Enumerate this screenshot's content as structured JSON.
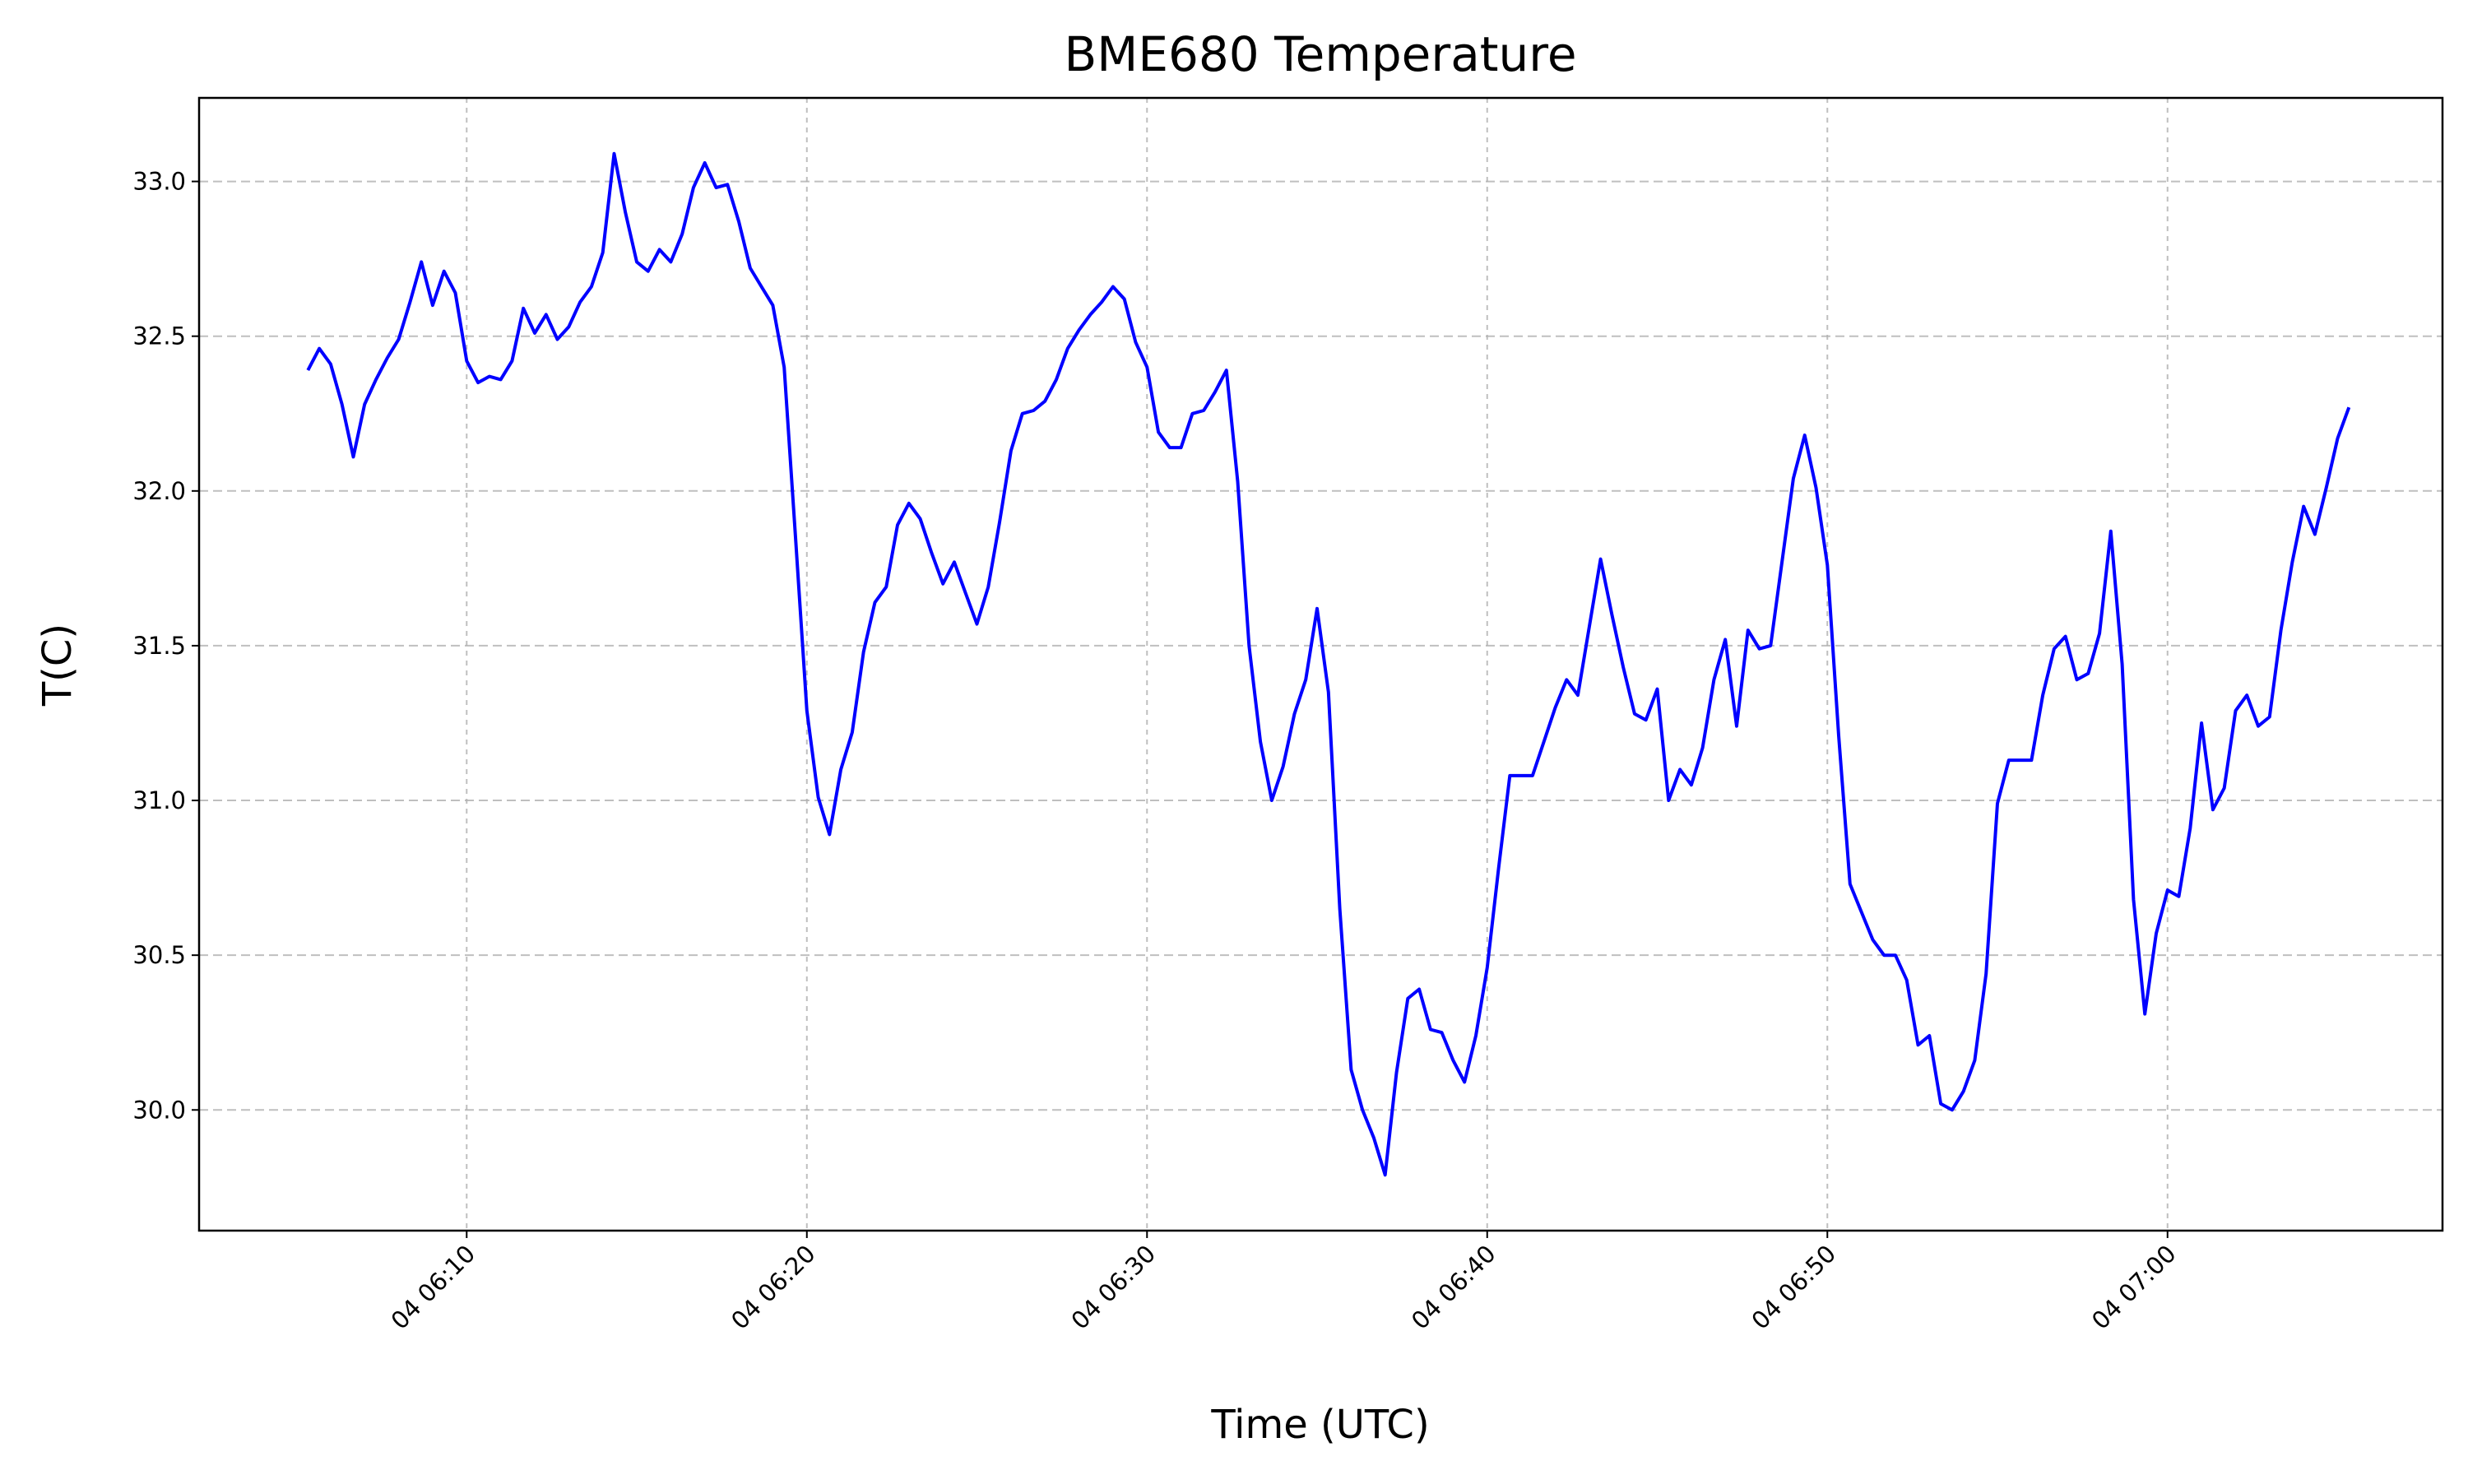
{
  "chart_data": {
    "type": "line",
    "title": "BME680 Temperature",
    "xlabel": "Time (UTC)",
    "ylabel": "T(C)",
    "x_tick_labels": [
      "04 06:10",
      "04 06:20",
      "04 06:30",
      "04 06:40",
      "04 06:50",
      "04 07:00"
    ],
    "x_ticks": [
      "06:10:00",
      "06:20:00",
      "06:30:00",
      "06:40:00",
      "06:50:00",
      "07:00:00"
    ],
    "y_ticks": [
      30.0,
      30.5,
      31.0,
      31.5,
      32.0,
      32.5,
      33.0
    ],
    "y_tick_labels": [
      "30.0",
      "30.5",
      "31.0",
      "31.5",
      "32.0",
      "32.5",
      "33.0"
    ],
    "xlim": [
      "06:02:08",
      "07:08:05"
    ],
    "ylim": [
      29.61,
      33.27
    ],
    "grid": true,
    "grid_style": "dashed",
    "legend": "none",
    "line_color": "#0000ff",
    "series": [
      {
        "x": [
          "06:05:20",
          "06:05:40",
          "06:06:00",
          "06:06:20",
          "06:06:40",
          "06:07:00",
          "06:07:20",
          "06:07:40",
          "06:08:00",
          "06:08:20",
          "06:08:40",
          "06:09:00",
          "06:09:20",
          "06:09:40",
          "06:10:00",
          "06:10:20",
          "06:10:40",
          "06:11:00",
          "06:11:20",
          "06:11:40",
          "06:12:00",
          "06:12:20",
          "06:12:40",
          "06:13:00",
          "06:13:20",
          "06:13:40",
          "06:14:00",
          "06:14:20",
          "06:14:40",
          "06:15:00",
          "06:15:20",
          "06:15:40",
          "06:16:00",
          "06:16:20",
          "06:16:40",
          "06:17:00",
          "06:17:20",
          "06:17:40",
          "06:18:00",
          "06:18:20",
          "06:18:40",
          "06:19:00",
          "06:19:20",
          "06:19:40",
          "06:20:00",
          "06:20:20",
          "06:20:40",
          "06:21:00",
          "06:21:20",
          "06:21:40",
          "06:22:00",
          "06:22:20",
          "06:22:40",
          "06:23:00",
          "06:23:20",
          "06:23:40",
          "06:24:00",
          "06:24:20",
          "06:24:40",
          "06:25:00",
          "06:25:20",
          "06:25:40",
          "06:26:00",
          "06:26:20",
          "06:26:40",
          "06:27:00",
          "06:27:20",
          "06:27:40",
          "06:28:00",
          "06:28:20",
          "06:28:40",
          "06:29:00",
          "06:29:20",
          "06:29:40",
          "06:30:00",
          "06:30:20",
          "06:30:40",
          "06:31:00",
          "06:31:20",
          "06:31:40",
          "06:32:00",
          "06:32:20",
          "06:32:40",
          "06:33:00",
          "06:33:20",
          "06:33:40",
          "06:34:00",
          "06:34:20",
          "06:34:40",
          "06:35:00",
          "06:35:20",
          "06:35:40",
          "06:36:00",
          "06:36:20",
          "06:36:40",
          "06:37:00",
          "06:37:20",
          "06:37:40",
          "06:38:00",
          "06:38:20",
          "06:38:40",
          "06:39:00",
          "06:39:20",
          "06:39:40",
          "06:40:00",
          "06:40:20",
          "06:40:40",
          "06:41:00",
          "06:41:20",
          "06:41:40",
          "06:42:00",
          "06:42:20",
          "06:42:40",
          "06:43:00",
          "06:43:20",
          "06:43:40",
          "06:44:00",
          "06:44:20",
          "06:44:40",
          "06:45:00",
          "06:45:20",
          "06:45:40",
          "06:46:00",
          "06:46:20",
          "06:46:40",
          "06:47:00",
          "06:47:20",
          "06:47:40",
          "06:48:00",
          "06:48:20",
          "06:48:40",
          "06:49:00",
          "06:49:20",
          "06:49:40",
          "06:50:00",
          "06:50:20",
          "06:50:40",
          "06:51:00",
          "06:51:20",
          "06:51:40",
          "06:52:00",
          "06:52:20",
          "06:52:40",
          "06:53:00",
          "06:53:20",
          "06:53:40",
          "06:54:00",
          "06:54:20",
          "06:54:40",
          "06:55:00",
          "06:55:20",
          "06:55:40",
          "06:56:00",
          "06:56:20",
          "06:56:40",
          "06:57:00",
          "06:57:20",
          "06:57:40",
          "06:58:00",
          "06:58:20",
          "06:58:40",
          "06:59:00",
          "06:59:20",
          "06:59:40",
          "07:00:00",
          "07:00:20",
          "07:00:40",
          "07:01:00",
          "07:01:20",
          "07:01:40",
          "07:02:00",
          "07:02:20",
          "07:02:40",
          "07:03:00",
          "07:03:20",
          "07:03:40",
          "07:04:00",
          "07:04:20",
          "07:04:40",
          "07:05:00",
          "07:05:20"
        ],
        "y": [
          32.39,
          32.46,
          32.41,
          32.28,
          32.11,
          32.28,
          32.36,
          32.43,
          32.49,
          32.61,
          32.74,
          32.6,
          32.71,
          32.64,
          32.42,
          32.35,
          32.37,
          32.36,
          32.42,
          32.59,
          32.51,
          32.57,
          32.49,
          32.53,
          32.61,
          32.66,
          32.77,
          33.09,
          32.9,
          32.74,
          32.71,
          32.78,
          32.74,
          32.83,
          32.98,
          33.06,
          32.98,
          32.99,
          32.87,
          32.72,
          32.66,
          32.6,
          32.4,
          31.85,
          31.29,
          31.01,
          30.89,
          31.1,
          31.22,
          31.48,
          31.64,
          31.69,
          31.89,
          31.96,
          31.91,
          31.8,
          31.7,
          31.77,
          31.67,
          31.57,
          31.69,
          31.9,
          32.13,
          32.25,
          32.26,
          32.29,
          32.36,
          32.46,
          32.52,
          32.57,
          32.61,
          32.66,
          32.62,
          32.48,
          32.4,
          32.19,
          32.14,
          32.14,
          32.25,
          32.26,
          32.32,
          32.39,
          32.03,
          31.5,
          31.19,
          31.0,
          31.11,
          31.28,
          31.39,
          31.62,
          31.35,
          30.65,
          30.13,
          30.0,
          29.91,
          29.79,
          30.12,
          30.36,
          30.39,
          30.26,
          30.25,
          30.16,
          30.09,
          30.24,
          30.46,
          30.78,
          31.08,
          31.08,
          31.08,
          31.19,
          31.3,
          31.39,
          31.34,
          31.56,
          31.78,
          31.6,
          31.43,
          31.28,
          31.26,
          31.36,
          31.0,
          31.1,
          31.05,
          31.17,
          31.39,
          31.52,
          31.24,
          31.55,
          31.49,
          31.5,
          31.77,
          32.04,
          32.18,
          32.01,
          31.76,
          31.21,
          30.73,
          30.64,
          30.55,
          30.5,
          30.5,
          30.42,
          30.21,
          30.24,
          30.02,
          30.0,
          30.06,
          30.16,
          30.44,
          30.99,
          31.13,
          31.13,
          31.13,
          31.34,
          31.49,
          31.53,
          31.39,
          31.41,
          31.54,
          31.87,
          31.44,
          30.68,
          30.31,
          30.57,
          30.71,
          30.69,
          30.91,
          31.25,
          30.97,
          31.04,
          31.29,
          31.34,
          31.24,
          31.27,
          31.55,
          31.77,
          31.95,
          31.86,
          32.01,
          32.17,
          32.27
        ]
      }
    ]
  }
}
